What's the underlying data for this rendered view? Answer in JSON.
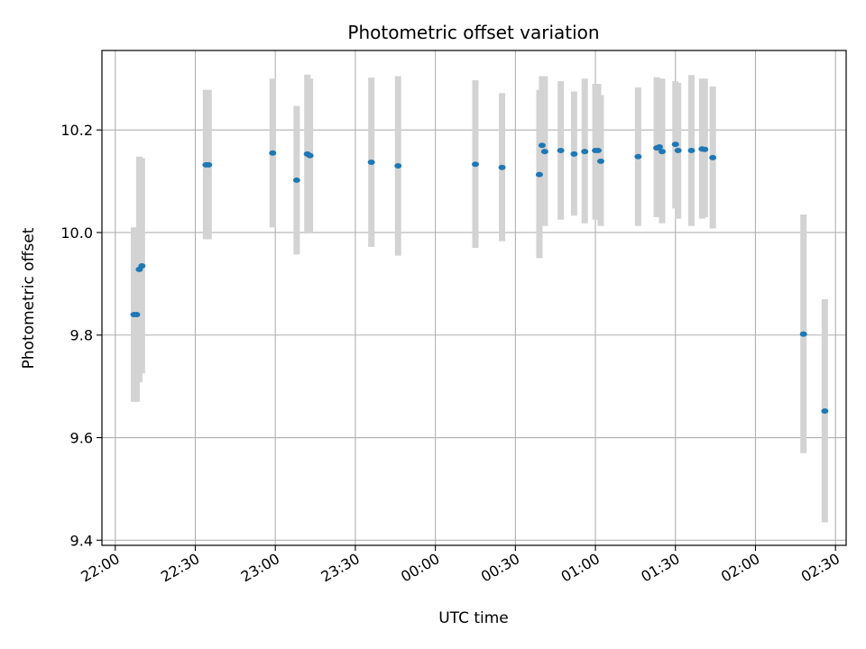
{
  "chart_data": {
    "type": "scatter",
    "title": "Photometric offset variation",
    "xlabel": "UTC time",
    "ylabel": "Photometric offset",
    "x_ticks": [
      "22:00",
      "22:30",
      "23:00",
      "23:30",
      "00:00",
      "00:30",
      "01:00",
      "01:30",
      "02:00",
      "02:30"
    ],
    "y_ticks": [
      "9.4",
      "9.6",
      "9.8",
      "10.0",
      "10.2"
    ],
    "xlim": [
      "21:55",
      "02:34"
    ],
    "ylim": [
      9.39,
      10.355
    ],
    "grid": true,
    "colors": {
      "point": "#1f77b4",
      "errorbar": "#d3d3d3",
      "grid": "#b0b0b0"
    },
    "points": [
      {
        "t": "22:07",
        "y": 9.84,
        "ylo": 9.67,
        "yhi": 10.01
      },
      {
        "t": "22:08",
        "y": 9.84,
        "ylo": 9.67,
        "yhi": 10.01
      },
      {
        "t": "22:09",
        "y": 9.928,
        "ylo": 9.708,
        "yhi": 10.148
      },
      {
        "t": "22:10",
        "y": 9.935,
        "ylo": 9.725,
        "yhi": 10.145
      },
      {
        "t": "22:34",
        "y": 10.132,
        "ylo": 9.987,
        "yhi": 10.278
      },
      {
        "t": "22:35",
        "y": 10.132,
        "ylo": 9.987,
        "yhi": 10.278
      },
      {
        "t": "22:59",
        "y": 10.155,
        "ylo": 10.01,
        "yhi": 10.3
      },
      {
        "t": "23:08",
        "y": 10.102,
        "ylo": 9.957,
        "yhi": 10.247
      },
      {
        "t": "23:12",
        "y": 10.153,
        "ylo": 9.998,
        "yhi": 10.308
      },
      {
        "t": "23:13",
        "y": 10.15,
        "ylo": 10.0,
        "yhi": 10.3
      },
      {
        "t": "23:36",
        "y": 10.137,
        "ylo": 9.972,
        "yhi": 10.302
      },
      {
        "t": "23:46",
        "y": 10.13,
        "ylo": 9.955,
        "yhi": 10.305
      },
      {
        "t": "00:15",
        "y": 10.133,
        "ylo": 9.97,
        "yhi": 10.297
      },
      {
        "t": "00:25",
        "y": 10.127,
        "ylo": 9.983,
        "yhi": 10.272
      },
      {
        "t": "00:39",
        "y": 10.113,
        "ylo": 9.95,
        "yhi": 10.278
      },
      {
        "t": "00:40",
        "y": 10.17,
        "ylo": 10.03,
        "yhi": 10.305
      },
      {
        "t": "00:41",
        "y": 10.158,
        "ylo": 10.013,
        "yhi": 10.305
      },
      {
        "t": "00:47",
        "y": 10.16,
        "ylo": 10.025,
        "yhi": 10.295
      },
      {
        "t": "00:52",
        "y": 10.153,
        "ylo": 10.033,
        "yhi": 10.275
      },
      {
        "t": "00:56",
        "y": 10.158,
        "ylo": 10.018,
        "yhi": 10.3
      },
      {
        "t": "01:00",
        "y": 10.16,
        "ylo": 10.025,
        "yhi": 10.29
      },
      {
        "t": "01:01",
        "y": 10.16,
        "ylo": 10.03,
        "yhi": 10.29
      },
      {
        "t": "01:02",
        "y": 10.139,
        "ylo": 10.013,
        "yhi": 10.268
      },
      {
        "t": "01:16",
        "y": 10.148,
        "ylo": 10.013,
        "yhi": 10.283
      },
      {
        "t": "01:23",
        "y": 10.165,
        "ylo": 10.03,
        "yhi": 10.303
      },
      {
        "t": "01:24",
        "y": 10.167,
        "ylo": 10.03,
        "yhi": 10.3
      },
      {
        "t": "01:25",
        "y": 10.158,
        "ylo": 10.018,
        "yhi": 10.3
      },
      {
        "t": "01:30",
        "y": 10.172,
        "ylo": 10.047,
        "yhi": 10.295
      },
      {
        "t": "01:31",
        "y": 10.16,
        "ylo": 10.027,
        "yhi": 10.292
      },
      {
        "t": "01:36",
        "y": 10.16,
        "ylo": 10.013,
        "yhi": 10.307
      },
      {
        "t": "01:40",
        "y": 10.163,
        "ylo": 10.027,
        "yhi": 10.3
      },
      {
        "t": "01:41",
        "y": 10.162,
        "ylo": 10.03,
        "yhi": 10.3
      },
      {
        "t": "01:44",
        "y": 10.146,
        "ylo": 10.008,
        "yhi": 10.285
      },
      {
        "t": "02:18",
        "y": 9.802,
        "ylo": 9.57,
        "yhi": 10.035
      },
      {
        "t": "02:26",
        "y": 9.652,
        "ylo": 9.435,
        "yhi": 9.87
      }
    ]
  }
}
